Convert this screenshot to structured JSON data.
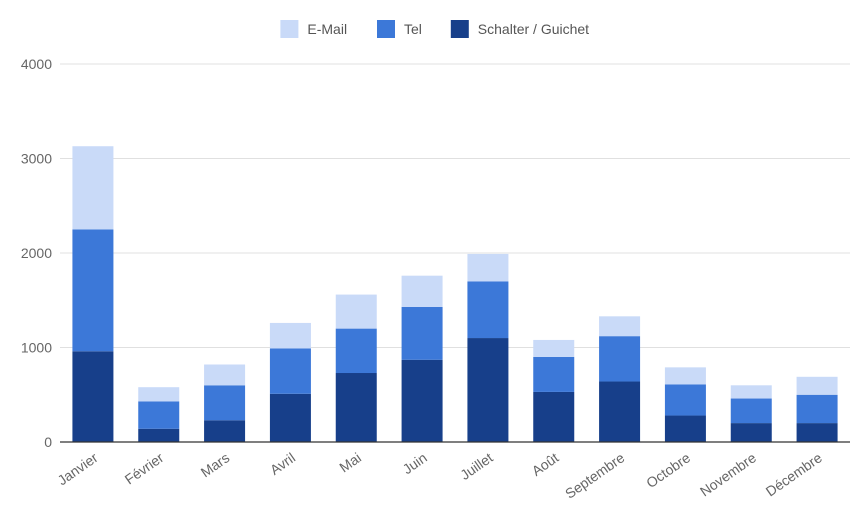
{
  "chart_data": {
    "type": "bar",
    "stacked": true,
    "categories": [
      "Janvier",
      "Février",
      "Mars",
      "Avril",
      "Mai",
      "Juin",
      "Juillet",
      "Août",
      "Septembre",
      "Octobre",
      "Novembre",
      "Décembre"
    ],
    "series": [
      {
        "name": "Schalter / Guichet",
        "color": "#173f8a",
        "values": [
          960,
          140,
          230,
          510,
          730,
          870,
          1100,
          530,
          640,
          280,
          200,
          200
        ]
      },
      {
        "name": "Tel",
        "color": "#3c78d8",
        "values": [
          1290,
          290,
          370,
          480,
          470,
          560,
          600,
          370,
          480,
          330,
          260,
          300
        ]
      },
      {
        "name": "E-Mail",
        "color": "#c9daf8",
        "values": [
          880,
          150,
          220,
          270,
          360,
          330,
          290,
          180,
          210,
          180,
          140,
          190
        ]
      }
    ],
    "legend_order": [
      "E-Mail",
      "Tel",
      "Schalter / Guichet"
    ],
    "legend_position": "top",
    "ylim": [
      0,
      4000
    ],
    "yticks": [
      0,
      1000,
      2000,
      3000,
      4000
    ],
    "grid": true,
    "title": "",
    "xlabel": "",
    "ylabel": ""
  }
}
